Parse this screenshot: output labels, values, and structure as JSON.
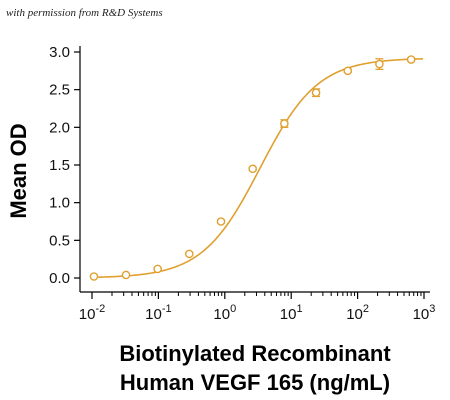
{
  "credit": "with permission from R&D Systems",
  "colors": {
    "series": "#E0A030",
    "axis": "#000000",
    "text": "#111111"
  },
  "chart_data": {
    "type": "scatter",
    "title": "",
    "xlabel_lines": [
      "Biotinylated Recombinant",
      "Human VEGF 165 (ng/mL)"
    ],
    "ylabel": "Mean OD",
    "xscale": "log",
    "xlim": [
      0.01,
      1000
    ],
    "ylim": [
      0,
      3.0
    ],
    "xticks": [
      {
        "value": 0.01,
        "base": "10",
        "exp": "-2"
      },
      {
        "value": 0.1,
        "base": "10",
        "exp": "-1"
      },
      {
        "value": 1,
        "base": "10",
        "exp": "0"
      },
      {
        "value": 10,
        "base": "10",
        "exp": "1"
      },
      {
        "value": 100,
        "base": "10",
        "exp": "2"
      },
      {
        "value": 1000,
        "base": "10",
        "exp": "3"
      }
    ],
    "yticks": [
      "0.0",
      "0.5",
      "1.0",
      "1.5",
      "2.0",
      "2.5",
      "3.0"
    ],
    "grid": false,
    "legend": "none",
    "series": [
      {
        "points": [
          {
            "x": 0.0107,
            "y": 0.02,
            "err": 0
          },
          {
            "x": 0.0325,
            "y": 0.04,
            "err": 0
          },
          {
            "x": 0.0974,
            "y": 0.12,
            "err": 0
          },
          {
            "x": 0.292,
            "y": 0.32,
            "err": 0
          },
          {
            "x": 0.877,
            "y": 0.75,
            "err": 0.02
          },
          {
            "x": 2.63,
            "y": 1.45,
            "err": 0.02
          },
          {
            "x": 7.89,
            "y": 2.05,
            "err": 0.05
          },
          {
            "x": 23.7,
            "y": 2.46,
            "err": 0.05
          },
          {
            "x": 71.1,
            "y": 2.75,
            "err": 0.02
          },
          {
            "x": 213,
            "y": 2.84,
            "err": 0.07
          },
          {
            "x": 640,
            "y": 2.9,
            "err": 0.02
          }
        ],
        "fit": {
          "model": "4PL",
          "bottom": 0.0,
          "top": 2.92,
          "ec50": 3.4,
          "hill": 1.0
        }
      }
    ]
  }
}
